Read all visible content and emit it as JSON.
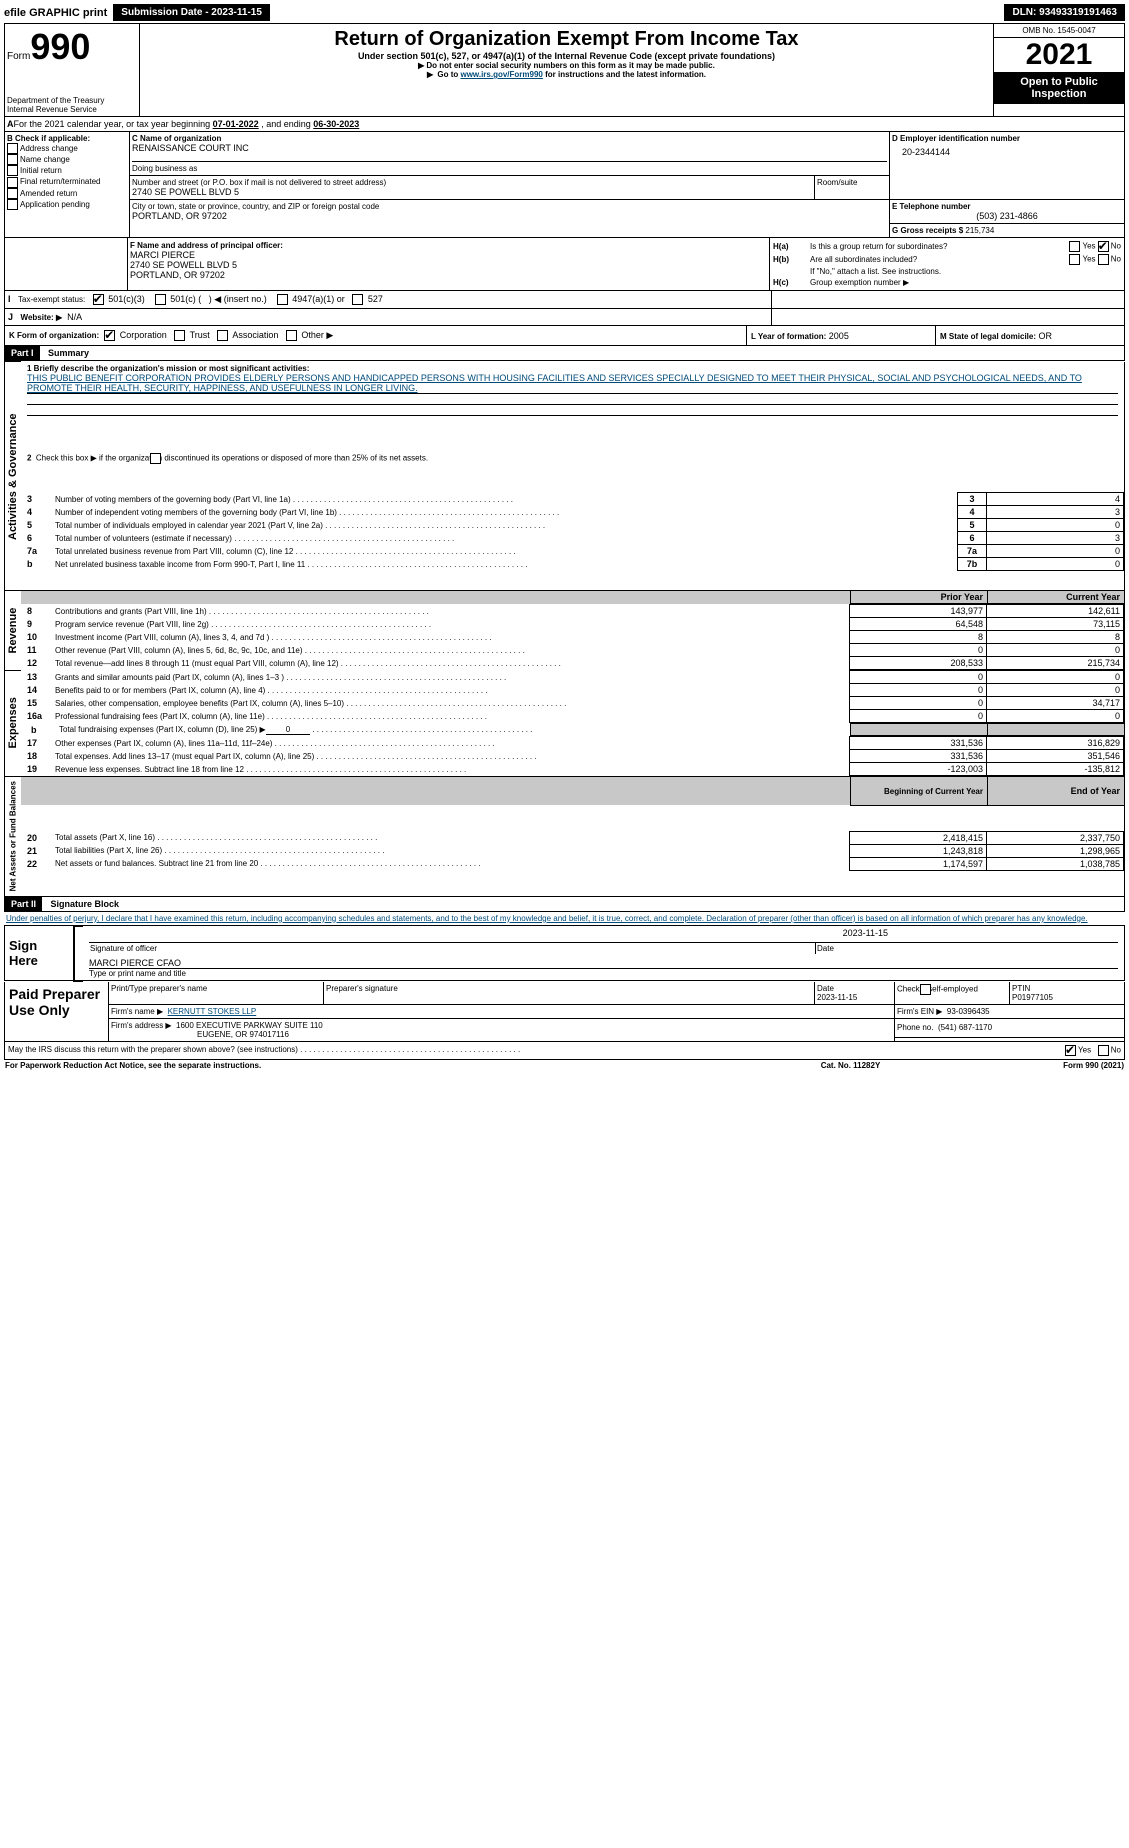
{
  "topbar": {
    "efile": "efile GRAPHIC print",
    "submission_btn": "Submission Date - 2023-11-15",
    "dln": "DLN: 93493319191463"
  },
  "header": {
    "form_word": "Form",
    "form_number": "990",
    "title": "Return of Organization Exempt From Income Tax",
    "subtitle": "Under section 501(c), 527, or 4947(a)(1) of the Internal Revenue Code (except private foundations)",
    "warn": "Do not enter social security numbers on this form as it may be made public.",
    "goto_pre": "Go to ",
    "goto_link": "www.irs.gov/Form990",
    "goto_post": " for instructions and the latest information.",
    "dept": "Department of the Treasury",
    "irs": "Internal Revenue Service",
    "omb": "OMB No. 1545-0047",
    "year": "2021",
    "open": "Open to Public Inspection"
  },
  "periodA": {
    "text_pre": "For the 2021 calendar year, or tax year beginning ",
    "begin": "07-01-2022",
    "mid": " , and ending ",
    "end": "06-30-2023"
  },
  "boxB": {
    "label": "B Check if applicable:",
    "items": [
      "Address change",
      "Name change",
      "Initial return",
      "Final return/terminated",
      "Amended return",
      "Application pending"
    ]
  },
  "boxC": {
    "label": "C Name of organization",
    "name": "RENAISSANCE COURT INC",
    "dba_label": "Doing business as",
    "street_label": "Number and street (or P.O. box if mail is not delivered to street address)",
    "room_label": "Room/suite",
    "street": "2740 SE POWELL BLVD 5",
    "city_label": "City or town, state or province, country, and ZIP or foreign postal code",
    "city": "PORTLAND, OR  97202"
  },
  "boxD": {
    "label": "D Employer identification number",
    "value": "20-2344144"
  },
  "boxE": {
    "label": "E Telephone number",
    "value": "(503) 231-4866"
  },
  "boxG": {
    "label": "G Gross receipts $",
    "value": "215,734"
  },
  "boxF": {
    "label": "F Name and address of principal officer:",
    "name": "MARCI PIERCE",
    "addr1": "2740 SE POWELL BLVD 5",
    "addr2": "PORTLAND, OR  97202"
  },
  "boxH": {
    "a": "Is this a group return for subordinates?",
    "b": "Are all subordinates included?",
    "b_note": "If \"No,\" attach a list. See instructions.",
    "c": "Group exemption number ▶",
    "yes": "Yes",
    "no": "No",
    "ha_label": "H(a)",
    "hb_label": "H(b)",
    "hc_label": "H(c)"
  },
  "boxI": {
    "label": "Tax-exempt status:",
    "opt1": "501(c)(3)",
    "opt2_a": "501(c) (",
    "opt2_b": ") ◀ (insert no.)",
    "opt3": "4947(a)(1) or",
    "opt4": "527"
  },
  "boxJ": {
    "label": "Website: ▶",
    "value": "N/A"
  },
  "boxK": {
    "label": "K Form of organization:",
    "opts": [
      "Corporation",
      "Trust",
      "Association",
      "Other ▶"
    ]
  },
  "boxL": {
    "label": "L Year of formation:",
    "value": "2005"
  },
  "boxM": {
    "label": "M State of legal domicile:",
    "value": "OR"
  },
  "part1": {
    "bar": "Part I",
    "title": "Summary",
    "q1_label": "1  Briefly describe the organization's mission or most significant activities:",
    "q1_text": "THIS PUBLIC BENEFIT CORPORATION PROVIDES ELDERLY PERSONS AND HANDICAPPED PERSONS WITH HOUSING FACILITIES AND SERVICES SPECIALLY DESIGNED TO MEET THEIR PHYSICAL, SOCIAL AND PSYCHOLOGICAL NEEDS, AND TO PROMOTE THEIR HEALTH, SECURITY, HAPPINESS, AND USEFULNESS IN LONGER LIVING.",
    "q2": "Check this box ▶      if the organization discontinued its operations or disposed of more than 25% of its net assets.",
    "vtab_ag": "Activities & Governance",
    "vtab_rev": "Revenue",
    "vtab_exp": "Expenses",
    "vtab_net": "Net Assets or Fund Balances",
    "rows_gov": [
      {
        "n": "3",
        "t": "Number of voting members of the governing body (Part VI, line 1a)",
        "box": "3",
        "v": "4"
      },
      {
        "n": "4",
        "t": "Number of independent voting members of the governing body (Part VI, line 1b)",
        "box": "4",
        "v": "3"
      },
      {
        "n": "5",
        "t": "Total number of individuals employed in calendar year 2021 (Part V, line 2a)",
        "box": "5",
        "v": "0"
      },
      {
        "n": "6",
        "t": "Total number of volunteers (estimate if necessary)",
        "box": "6",
        "v": "3"
      },
      {
        "n": "7a",
        "t": "Total unrelated business revenue from Part VIII, column (C), line 12",
        "box": "7a",
        "v": "0"
      },
      {
        "n": "b",
        "t": "Net unrelated business taxable income from Form 990-T, Part I, line 11",
        "box": "7b",
        "v": "0"
      }
    ],
    "hdr_prior": "Prior Year",
    "hdr_curr": "Current Year",
    "rows_rev": [
      {
        "n": "8",
        "t": "Contributions and grants (Part VIII, line 1h)",
        "p": "143,977",
        "c": "142,611"
      },
      {
        "n": "9",
        "t": "Program service revenue (Part VIII, line 2g)",
        "p": "64,548",
        "c": "73,115"
      },
      {
        "n": "10",
        "t": "Investment income (Part VIII, column (A), lines 3, 4, and 7d )",
        "p": "8",
        "c": "8"
      },
      {
        "n": "11",
        "t": "Other revenue (Part VIII, column (A), lines 5, 6d, 8c, 9c, 10c, and 11e)",
        "p": "0",
        "c": "0"
      },
      {
        "n": "12",
        "t": "Total revenue—add lines 8 through 11 (must equal Part VIII, column (A), line 12)",
        "p": "208,533",
        "c": "215,734"
      }
    ],
    "rows_exp": [
      {
        "n": "13",
        "t": "Grants and similar amounts paid (Part IX, column (A), lines 1–3 )",
        "p": "0",
        "c": "0"
      },
      {
        "n": "14",
        "t": "Benefits paid to or for members (Part IX, column (A), line 4)",
        "p": "0",
        "c": "0"
      },
      {
        "n": "15",
        "t": "Salaries, other compensation, employee benefits (Part IX, column (A), lines 5–10)",
        "p": "0",
        "c": "34,717"
      },
      {
        "n": "16a",
        "t": "Professional fundraising fees (Part IX, column (A), line 11e)",
        "p": "0",
        "c": "0"
      }
    ],
    "row_b": {
      "n": "b",
      "t": "Total fundraising expenses (Part IX, column (D), line 25) ▶",
      "v": "0"
    },
    "rows_exp2": [
      {
        "n": "17",
        "t": "Other expenses (Part IX, column (A), lines 11a–11d, 11f–24e)",
        "p": "331,536",
        "c": "316,829"
      },
      {
        "n": "18",
        "t": "Total expenses. Add lines 13–17 (must equal Part IX, column (A), line 25)",
        "p": "331,536",
        "c": "351,546"
      },
      {
        "n": "19",
        "t": "Revenue less expenses. Subtract line 18 from line 12",
        "p": "-123,003",
        "c": "-135,812"
      }
    ],
    "hdr_beg": "Beginning of Current Year",
    "hdr_end": "End of Year",
    "rows_net": [
      {
        "n": "20",
        "t": "Total assets (Part X, line 16)",
        "p": "2,418,415",
        "c": "2,337,750"
      },
      {
        "n": "21",
        "t": "Total liabilities (Part X, line 26)",
        "p": "1,243,818",
        "c": "1,298,965"
      },
      {
        "n": "22",
        "t": "Net assets or fund balances. Subtract line 21 from line 20",
        "p": "1,174,597",
        "c": "1,038,785"
      }
    ]
  },
  "part2": {
    "bar": "Part II",
    "title": "Signature Block",
    "jurat": "Under penalties of perjury, I declare that I have examined this return, including accompanying schedules and statements, and to the best of my knowledge and belief, it is true, correct, and complete. Declaration of preparer (other than officer) is based on all information of which preparer has any knowledge.",
    "sign_here": "Sign Here",
    "sig_officer": "Signature of officer",
    "date": "Date",
    "date_val": "2023-11-15",
    "officer_name": "MARCI PIERCE  CFAO",
    "type_name": "Type or print name and title",
    "paid": "Paid Preparer Use Only",
    "pt_name_l": "Print/Type preparer's name",
    "pt_sig_l": "Preparer's signature",
    "pt_date_l": "Date",
    "pt_date": "2023-11-15",
    "pt_check": "Check         if self-employed",
    "ptin_l": "PTIN",
    "ptin": "P01977105",
    "firm_name_l": "Firm's name   ▶",
    "firm_name": "KERNUTT STOKES LLP",
    "firm_ein_l": "Firm's EIN ▶",
    "firm_ein": "93-0396435",
    "firm_addr_l": "Firm's address ▶",
    "firm_addr1": "1600 EXECUTIVE PARKWAY SUITE 110",
    "firm_addr2": "EUGENE, OR  974017116",
    "phone_l": "Phone no.",
    "phone": "(541) 687-1170",
    "discuss": "May the IRS discuss this return with the preparer shown above? (see instructions)",
    "paperwork": "For Paperwork Reduction Act Notice, see the separate instructions.",
    "cat": "Cat. No. 11282Y",
    "formfoot": "Form 990 (2021)"
  }
}
